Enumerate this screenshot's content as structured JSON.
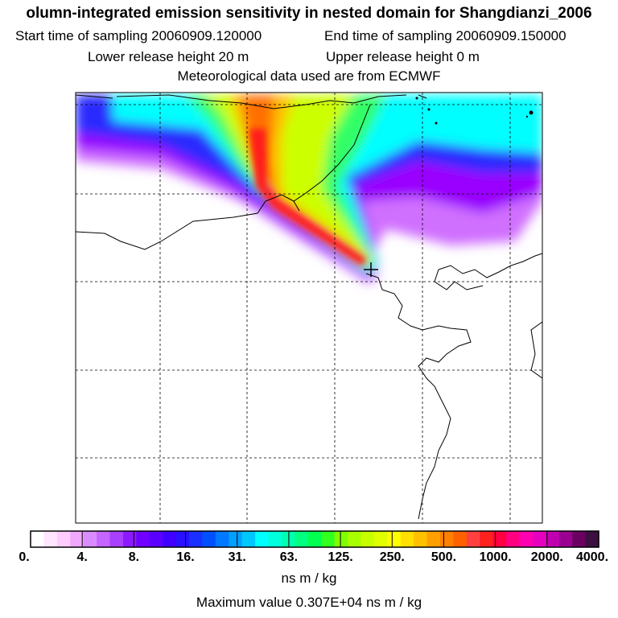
{
  "header": {
    "title": "olumn-integrated emission sensitivity in nested domain for Shangdianzi_2006",
    "start_label": "Start time of sampling 20060909.120000",
    "end_label": "End time of sampling 20060909.150000",
    "lower_label": "Lower release height   20 m",
    "upper_label": "Upper release height    0 m",
    "met_label": "Meteorological data used are from ECMWF"
  },
  "map": {
    "station_marker": "plus-marker-icon",
    "plume_colors": {
      "white": "#ffffff",
      "violet": "#9a00ff",
      "blue": "#2a2aff",
      "cyan": "#00ffff",
      "green": "#33ff66",
      "lime": "#bfff00",
      "yellow": "#ffd000",
      "orange": "#ff7000",
      "red": "#ff1a1a"
    }
  },
  "legend": {
    "tick_labels": [
      "0.",
      "4.",
      "8.",
      "16.",
      "31.",
      "63.",
      "125.",
      "250.",
      "500.",
      "1000.",
      "2000.",
      "4000."
    ],
    "colors": [
      "#ffffff",
      "#ffe6ff",
      "#ffccff",
      "#f0a8ff",
      "#d98cff",
      "#c466ff",
      "#a840ff",
      "#8c1aff",
      "#7000ff",
      "#5a00ff",
      "#4000ff",
      "#2a10ff",
      "#1a30ff",
      "#0050ff",
      "#0078ff",
      "#00a0ff",
      "#00c8ff",
      "#00ffff",
      "#00ffdd",
      "#00ffb0",
      "#00ff80",
      "#00ff50",
      "#30ff20",
      "#80ff00",
      "#a8ff00",
      "#c8ff00",
      "#e0ff00",
      "#ffff00",
      "#ffe000",
      "#ffc000",
      "#ffa000",
      "#ff8000",
      "#ff6000",
      "#ff4040",
      "#ff2020",
      "#ff0040",
      "#ff0080",
      "#ff00b0",
      "#e800c0",
      "#c000b0",
      "#9a0090",
      "#6a0060",
      "#3a1040"
    ],
    "units": "ns m / kg",
    "max_value": "Maximum value  0.307E+04 ns m / kg"
  }
}
